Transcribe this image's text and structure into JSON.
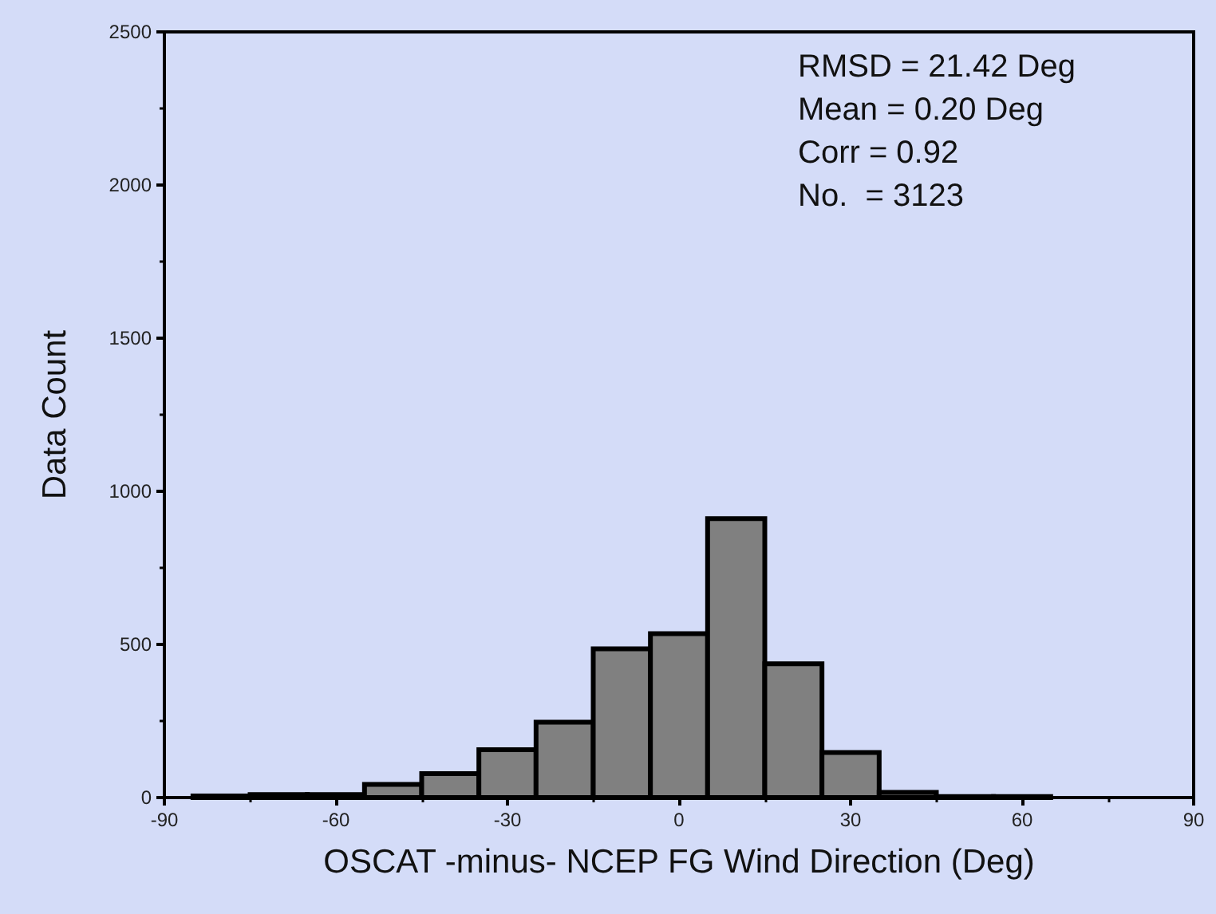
{
  "chart_data": {
    "type": "histogram",
    "xlabel": "OSCAT -minus- NCEP FG Wind Direction (Deg)",
    "ylabel": "Data Count",
    "bins": [
      -85,
      -75,
      -65,
      -55,
      -45,
      -35,
      -25,
      -15,
      -5,
      5,
      15,
      25,
      35,
      45,
      55,
      65
    ],
    "values": [
      5,
      10,
      10,
      43,
      78,
      156,
      246,
      486,
      535,
      911,
      437,
      147,
      17,
      3,
      3
    ],
    "color": "#808080",
    "xlim": [
      -90,
      90
    ],
    "xticks": [
      -90,
      -60,
      -30,
      0,
      30,
      60,
      90
    ],
    "ylim": [
      0,
      2500
    ],
    "yticks": [
      0,
      500,
      1000,
      1500,
      2000,
      2500
    ],
    "grid": false,
    "annotations": [
      "RMSD = 21.42 Deg",
      "Mean = 0.20 Deg",
      "Corr = 0.92",
      "No.  = 3123"
    ]
  }
}
